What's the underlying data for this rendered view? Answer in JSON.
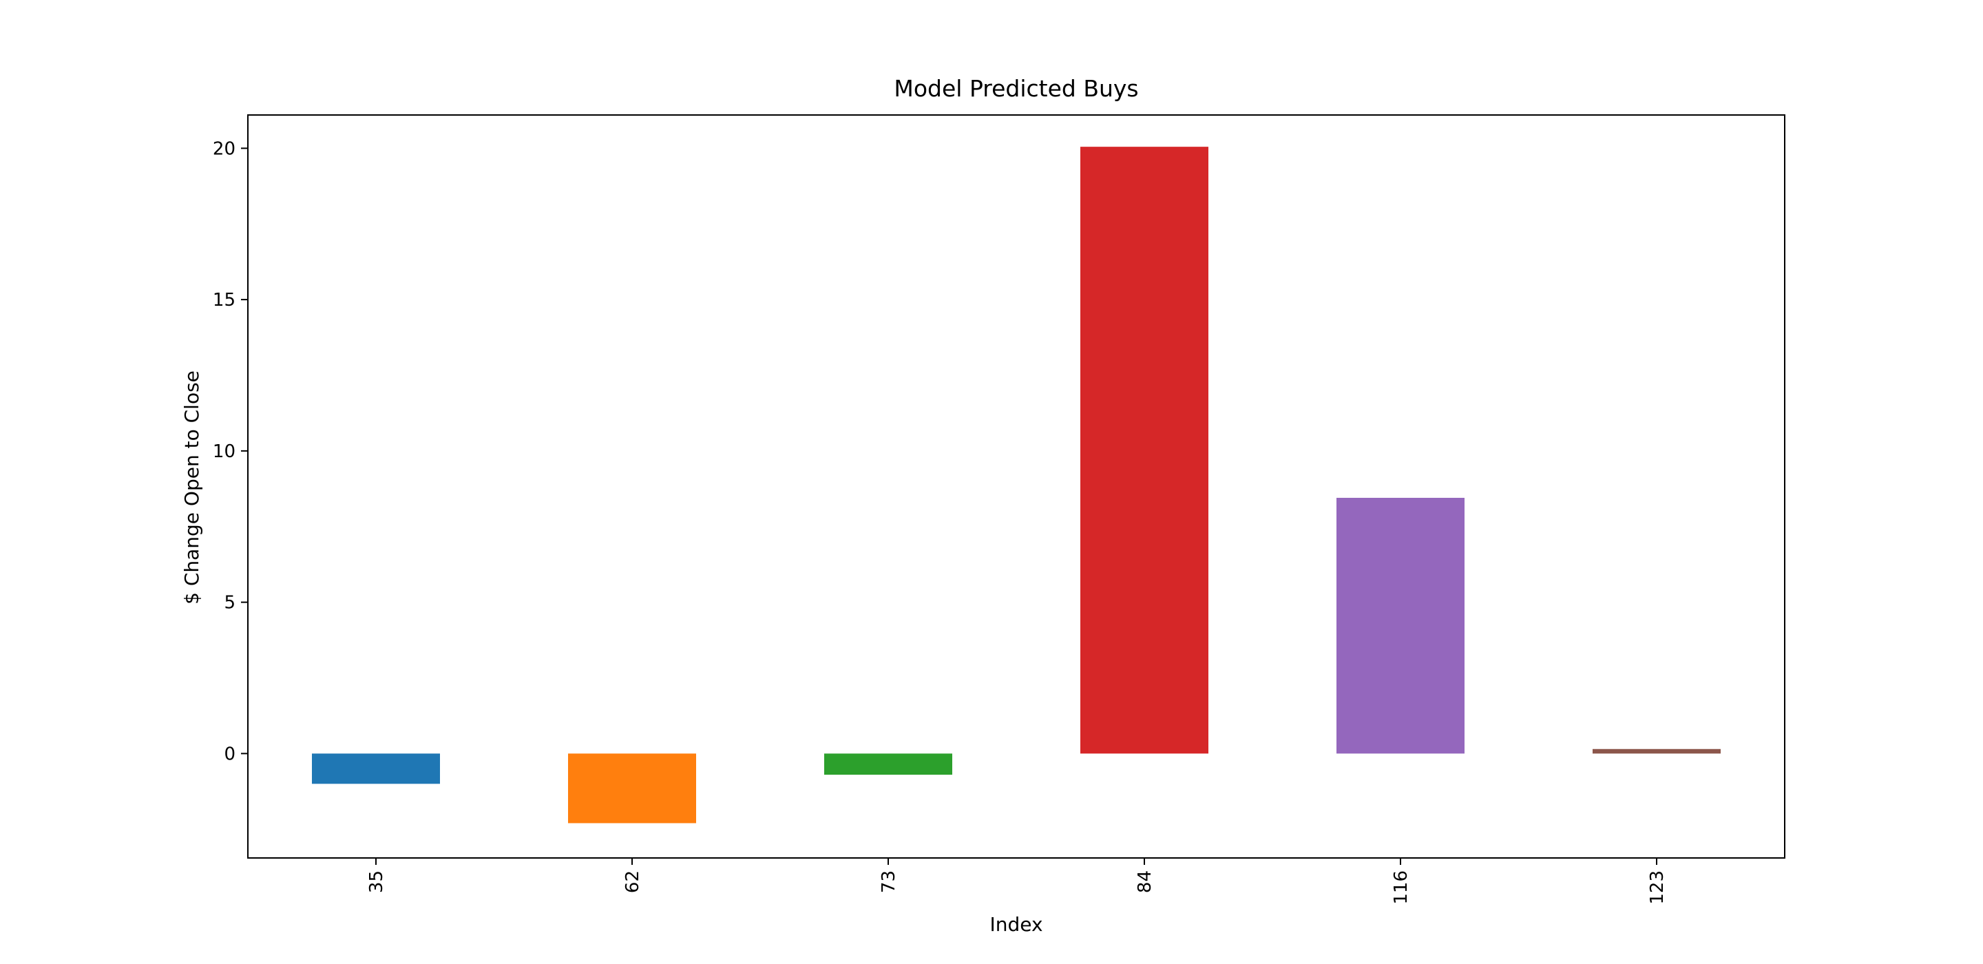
{
  "chart_data": {
    "type": "bar",
    "title": "Model Predicted Buys",
    "xlabel": "Index",
    "ylabel": "$ Change Open to Close",
    "categories": [
      "35",
      "62",
      "73",
      "84",
      "116",
      "123"
    ],
    "values": [
      -1.0,
      -2.3,
      -0.7,
      20.05,
      8.45,
      0.15
    ],
    "colors": [
      "#1f77b4",
      "#ff7f0e",
      "#2ca02c",
      "#d62728",
      "#9467bd",
      "#8c564b"
    ],
    "ylim": [
      -3.45,
      21.1
    ],
    "yticks": [
      0,
      5,
      10,
      15,
      20
    ],
    "ytick_labels": [
      "0",
      "5",
      "10",
      "15",
      "20"
    ],
    "grid": false,
    "legend": "none"
  }
}
